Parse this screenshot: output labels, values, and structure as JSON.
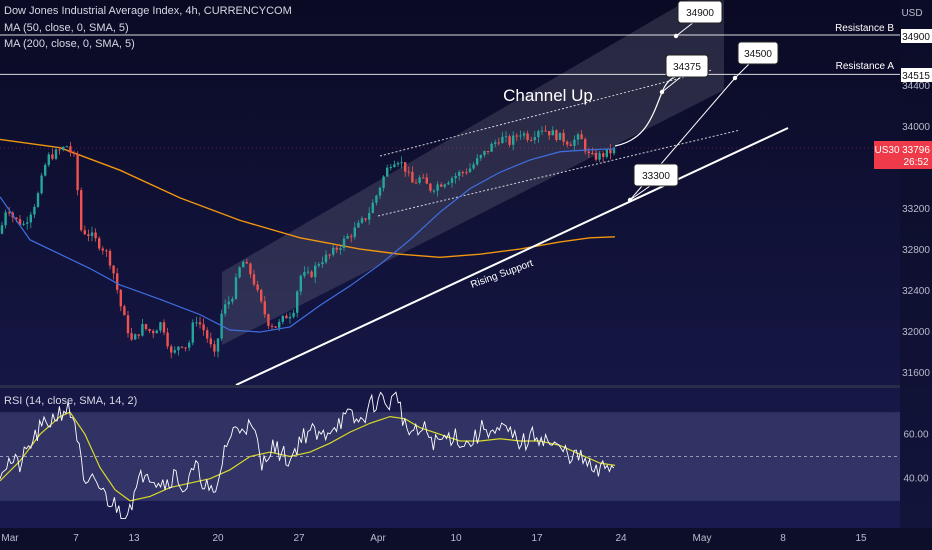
{
  "header": {
    "symbol_line": "Dow Jones Industrial Average Index, 4h, CURRENCYCOM",
    "ma50_line": "MA (50, close, 0, SMA, 5)",
    "ma200_line": "MA (200, close, 0, SMA, 5)",
    "currency": "USD"
  },
  "rsi_panel": {
    "label": "RSI (14, close, SMA, 14, 2)"
  },
  "colors": {
    "background": "#0d0f2a",
    "up_candle": "#26a69a",
    "down_candle": "#ef5350",
    "ma50": "#3f6fe0",
    "ma200": "#f0960f",
    "rsi_line": "#ffffff",
    "rsi_ma": "#d9d92a",
    "price_tag": "#ef3b49"
  },
  "chart_data": [
    {
      "type": "candlestick",
      "title": "Dow Jones Industrial Average Index, 4h, CURRENCYCOM",
      "y_axis": {
        "ticks": [
          31600,
          32000,
          32400,
          32800,
          33200,
          34000,
          34400
        ],
        "ylim": [
          31450,
          35280
        ]
      },
      "x_axis": {
        "ticks": [
          "Mar",
          "7",
          "13",
          "20",
          "27",
          "Apr",
          "10",
          "17",
          "24",
          "May",
          "8",
          "15"
        ]
      },
      "price_path": [
        [
          0,
          32960
        ],
        [
          7,
          33250
        ],
        [
          14,
          33100
        ],
        [
          24,
          33050
        ],
        [
          37,
          33300
        ],
        [
          47,
          33700
        ],
        [
          60,
          33770
        ],
        [
          67,
          33820
        ],
        [
          75,
          33680
        ],
        [
          81,
          33000
        ],
        [
          90,
          32950
        ],
        [
          105,
          32800
        ],
        [
          112,
          32650
        ],
        [
          122,
          32200
        ],
        [
          132,
          31900
        ],
        [
          142,
          32050
        ],
        [
          152,
          32000
        ],
        [
          162,
          32100
        ],
        [
          172,
          31750
        ],
        [
          180,
          31900
        ],
        [
          188,
          31850
        ],
        [
          195,
          32150
        ],
        [
          205,
          32000
        ],
        [
          215,
          31750
        ],
        [
          222,
          32200
        ],
        [
          232,
          32350
        ],
        [
          242,
          32700
        ],
        [
          252,
          32550
        ],
        [
          260,
          32300
        ],
        [
          268,
          32100
        ],
        [
          277,
          32050
        ],
        [
          285,
          32150
        ],
        [
          293,
          32200
        ],
        [
          300,
          32550
        ],
        [
          310,
          32550
        ],
        [
          320,
          32700
        ],
        [
          330,
          32750
        ],
        [
          340,
          32850
        ],
        [
          350,
          32950
        ],
        [
          360,
          33050
        ],
        [
          368,
          33150
        ],
        [
          375,
          33300
        ],
        [
          383,
          33500
        ],
        [
          390,
          33650
        ],
        [
          397,
          33700
        ],
        [
          405,
          33600
        ],
        [
          412,
          33450
        ],
        [
          420,
          33500
        ],
        [
          430,
          33400
        ],
        [
          440,
          33450
        ],
        [
          450,
          33500
        ],
        [
          460,
          33550
        ],
        [
          470,
          33600
        ],
        [
          480,
          33700
        ],
        [
          490,
          33800
        ],
        [
          500,
          33900
        ],
        [
          510,
          33850
        ],
        [
          520,
          33950
        ],
        [
          530,
          33900
        ],
        [
          540,
          34000
        ],
        [
          550,
          33950
        ],
        [
          560,
          33900
        ],
        [
          570,
          33850
        ],
        [
          580,
          33900
        ],
        [
          590,
          33700
        ],
        [
          600,
          33720
        ],
        [
          610,
          33760
        ],
        [
          618,
          33796
        ]
      ],
      "ma50_path": [
        [
          0,
          33320
        ],
        [
          30,
          32900
        ],
        [
          60,
          32760
        ],
        [
          90,
          32620
        ],
        [
          120,
          32460
        ],
        [
          160,
          32320
        ],
        [
          200,
          32170
        ],
        [
          230,
          32020
        ],
        [
          260,
          32000
        ],
        [
          290,
          32050
        ],
        [
          320,
          32260
        ],
        [
          350,
          32450
        ],
        [
          380,
          32660
        ],
        [
          410,
          32900
        ],
        [
          440,
          33170
        ],
        [
          470,
          33400
        ],
        [
          500,
          33560
        ],
        [
          530,
          33680
        ],
        [
          560,
          33760
        ],
        [
          590,
          33780
        ],
        [
          615,
          33790
        ]
      ],
      "ma200_path": [
        [
          0,
          33880
        ],
        [
          60,
          33800
        ],
        [
          120,
          33580
        ],
        [
          180,
          33310
        ],
        [
          240,
          33090
        ],
        [
          300,
          32920
        ],
        [
          360,
          32810
        ],
        [
          400,
          32760
        ],
        [
          440,
          32730
        ],
        [
          480,
          32760
        ],
        [
          520,
          32810
        ],
        [
          560,
          32880
        ],
        [
          590,
          32920
        ],
        [
          615,
          32930
        ]
      ],
      "current_price": {
        "symbol": "US30",
        "value": "33796",
        "countdown": "26:52"
      },
      "horizontal_levels": [
        {
          "name": "Resistance B",
          "value": 34900,
          "axis_label": "34900"
        },
        {
          "name": "Resistance A",
          "value": 34515,
          "axis_label": "34515"
        }
      ],
      "annotations": [
        {
          "text": "Channel Up",
          "kind": "pattern-label"
        },
        {
          "text": "Rising Support",
          "kind": "trendline-label"
        },
        {
          "text": "34900",
          "kind": "target-callout",
          "value": 34900
        },
        {
          "text": "34500",
          "kind": "target-callout",
          "value": 34500
        },
        {
          "text": "34375",
          "kind": "target-callout",
          "value": 34375
        },
        {
          "text": "33300",
          "kind": "callout",
          "value": 33300
        }
      ]
    },
    {
      "type": "line",
      "title": "RSI (14, close, SMA, 14, 2)",
      "y_axis": {
        "ticks": [
          60.0,
          40.0
        ],
        "ylim": [
          20,
          80
        ]
      },
      "rsi_path": [
        [
          0,
          44
        ],
        [
          10,
          48
        ],
        [
          20,
          46
        ],
        [
          30,
          55
        ],
        [
          40,
          62
        ],
        [
          50,
          66
        ],
        [
          60,
          70
        ],
        [
          67,
          72
        ],
        [
          75,
          66
        ],
        [
          85,
          34
        ],
        [
          95,
          40
        ],
        [
          105,
          32
        ],
        [
          115,
          28
        ],
        [
          125,
          24
        ],
        [
          135,
          33
        ],
        [
          145,
          45
        ],
        [
          155,
          40
        ],
        [
          165,
          38
        ],
        [
          175,
          42
        ],
        [
          185,
          35
        ],
        [
          195,
          45
        ],
        [
          205,
          38
        ],
        [
          215,
          30
        ],
        [
          225,
          55
        ],
        [
          235,
          62
        ],
        [
          245,
          65
        ],
        [
          255,
          60
        ],
        [
          262,
          45
        ],
        [
          270,
          55
        ],
        [
          280,
          52
        ],
        [
          290,
          48
        ],
        [
          300,
          58
        ],
        [
          310,
          62
        ],
        [
          320,
          58
        ],
        [
          330,
          63
        ],
        [
          340,
          66
        ],
        [
          350,
          68
        ],
        [
          360,
          65
        ],
        [
          370,
          73
        ],
        [
          380,
          76
        ],
        [
          390,
          74
        ],
        [
          398,
          78
        ],
        [
          405,
          63
        ],
        [
          415,
          60
        ],
        [
          425,
          62
        ],
        [
          435,
          56
        ],
        [
          445,
          58
        ],
        [
          455,
          60
        ],
        [
          465,
          55
        ],
        [
          475,
          58
        ],
        [
          485,
          64
        ],
        [
          495,
          60
        ],
        [
          505,
          62
        ],
        [
          515,
          58
        ],
        [
          525,
          56
        ],
        [
          535,
          60
        ],
        [
          545,
          58
        ],
        [
          555,
          54
        ],
        [
          565,
          52
        ],
        [
          575,
          50
        ],
        [
          585,
          48
        ],
        [
          595,
          42
        ],
        [
          605,
          45
        ],
        [
          615,
          47
        ]
      ],
      "rsi_ma_path": [
        [
          0,
          39
        ],
        [
          20,
          48
        ],
        [
          40,
          60
        ],
        [
          60,
          68
        ],
        [
          70,
          70
        ],
        [
          85,
          60
        ],
        [
          100,
          45
        ],
        [
          115,
          35
        ],
        [
          130,
          30
        ],
        [
          150,
          32
        ],
        [
          170,
          36
        ],
        [
          190,
          38
        ],
        [
          210,
          40
        ],
        [
          230,
          44
        ],
        [
          250,
          50
        ],
        [
          270,
          52
        ],
        [
          290,
          50
        ],
        [
          310,
          52
        ],
        [
          330,
          56
        ],
        [
          350,
          61
        ],
        [
          370,
          65
        ],
        [
          390,
          68
        ],
        [
          405,
          67
        ],
        [
          420,
          63
        ],
        [
          440,
          60
        ],
        [
          460,
          57
        ],
        [
          480,
          57
        ],
        [
          500,
          58
        ],
        [
          520,
          57
        ],
        [
          540,
          57
        ],
        [
          560,
          55
        ],
        [
          580,
          51
        ],
        [
          600,
          47
        ],
        [
          615,
          46
        ]
      ]
    }
  ]
}
